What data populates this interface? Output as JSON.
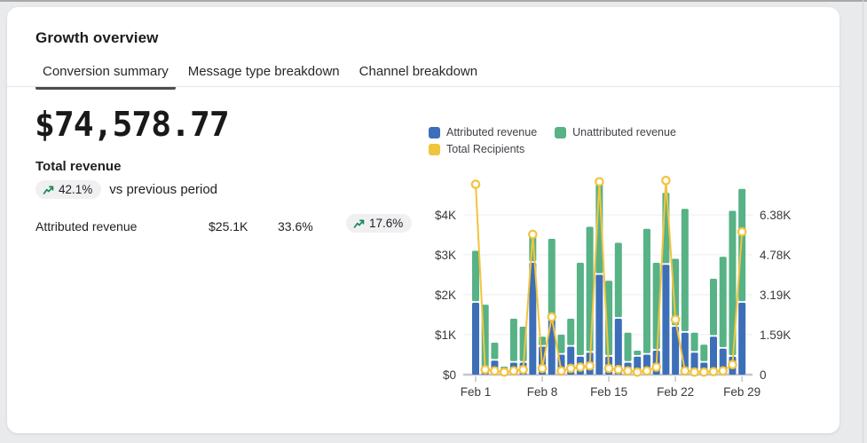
{
  "card": {
    "title": "Growth overview",
    "tabs": [
      {
        "label": "Conversion summary",
        "active": true
      },
      {
        "label": "Message type breakdown",
        "active": false
      },
      {
        "label": "Channel breakdown",
        "active": false
      }
    ]
  },
  "summary": {
    "total_value": "$74,578.77",
    "total_label": "Total revenue",
    "change_badge": "42.1%",
    "change_suffix": "vs previous period",
    "stat_row": {
      "label": "Attributed revenue",
      "value": "$25.1K",
      "share": "33.6%",
      "change": "17.6%"
    }
  },
  "colors": {
    "attributed_blue": "#3d6fb8",
    "unattributed_green": "#57b286",
    "recipients_yellow": "#f0c43c",
    "line_yellow": "#f2c43d",
    "trend_green": "#1a8754",
    "gridline": "#eeeef0",
    "axis_line": "#c3c6ca",
    "axis_text": "#3a3a3c"
  },
  "chart": {
    "legend": [
      {
        "label": "Attributed revenue",
        "color": "#3d6fb8"
      },
      {
        "label": "Unattributed revenue",
        "color": "#57b286"
      },
      {
        "label": "Total Recipients",
        "color": "#f0c43c"
      }
    ]
  },
  "chart_data": {
    "type": "bar",
    "subtype": "stacked-bars-with-line-overlay",
    "categories": [
      "Feb 1",
      "Feb 2",
      "Feb 3",
      "Feb 4",
      "Feb 5",
      "Feb 6",
      "Feb 7",
      "Feb 8",
      "Feb 9",
      "Feb 10",
      "Feb 11",
      "Feb 12",
      "Feb 13",
      "Feb 14",
      "Feb 15",
      "Feb 16",
      "Feb 17",
      "Feb 18",
      "Feb 19",
      "Feb 20",
      "Feb 21",
      "Feb 22",
      "Feb 23",
      "Feb 24",
      "Feb 25",
      "Feb 26",
      "Feb 27",
      "Feb 28",
      "Feb 29"
    ],
    "series": [
      {
        "name": "Attributed revenue",
        "axis": "left",
        "unit": "$K",
        "render": "bar-bottom-segment",
        "values": [
          1.8,
          0.15,
          0.35,
          0.05,
          0.3,
          0.3,
          2.8,
          0.7,
          1.4,
          0.5,
          0.7,
          0.45,
          0.55,
          2.5,
          0.45,
          1.4,
          0.3,
          0.45,
          0.5,
          0.6,
          2.75,
          1.2,
          1.05,
          0.55,
          0.3,
          0.95,
          0.65,
          0.45,
          1.8
        ]
      },
      {
        "name": "Unattributed revenue",
        "axis": "left",
        "unit": "$K",
        "render": "bar-top-segment",
        "values": [
          1.3,
          1.6,
          0.45,
          0.15,
          1.1,
          0.9,
          0.8,
          0.25,
          2.0,
          0.5,
          0.7,
          2.35,
          3.15,
          2.3,
          1.9,
          1.9,
          0.75,
          0.15,
          3.15,
          2.2,
          1.8,
          1.7,
          3.1,
          0.5,
          0.45,
          1.45,
          2.3,
          3.65,
          2.85
        ]
      },
      {
        "name": "Total Recipients",
        "axis": "right",
        "unit": "K",
        "render": "line-with-markers",
        "values": [
          7.6,
          0.2,
          0.15,
          0.1,
          0.15,
          0.2,
          5.6,
          0.25,
          2.3,
          0.15,
          0.25,
          0.3,
          0.35,
          7.7,
          0.25,
          0.2,
          0.15,
          0.1,
          0.15,
          0.3,
          7.75,
          2.2,
          0.15,
          0.1,
          0.1,
          0.12,
          0.15,
          0.4,
          5.7
        ]
      }
    ],
    "left_axis": {
      "ticks": [
        "$0",
        "$1K",
        "$2K",
        "$3K",
        "$4K"
      ],
      "tick_values": [
        0,
        1,
        2,
        3,
        4
      ],
      "range": [
        0,
        4.95
      ]
    },
    "right_axis": {
      "ticks": [
        "0",
        "1.59K",
        "3.19K",
        "4.78K",
        "6.38K"
      ],
      "tick_values": [
        0,
        1.595,
        3.19,
        4.785,
        6.38
      ],
      "range": [
        0,
        7.9
      ]
    },
    "x_tick_labels": [
      "Feb 1",
      "Feb 8",
      "Feb 15",
      "Feb 22",
      "Feb 29"
    ],
    "x_tick_indices": [
      0,
      7,
      14,
      21,
      28
    ],
    "grid": "horizontal",
    "legend_position": "top"
  }
}
